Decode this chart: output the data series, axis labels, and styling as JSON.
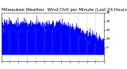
{
  "title": "Milwaukee Weather  Wind Chill per Minute (Last 24 Hours)",
  "line_color": "#0000ff",
  "bg_color": "#ffffff",
  "plot_bg_color": "#ffffff",
  "grid_color": "#aaaaaa",
  "ylim": [
    -15,
    40
  ],
  "yticks": [
    0,
    10,
    20,
    30,
    40
  ],
  "n_points": 1440,
  "seed": 12,
  "title_fontsize": 4.0,
  "tick_fontsize": 3.2
}
